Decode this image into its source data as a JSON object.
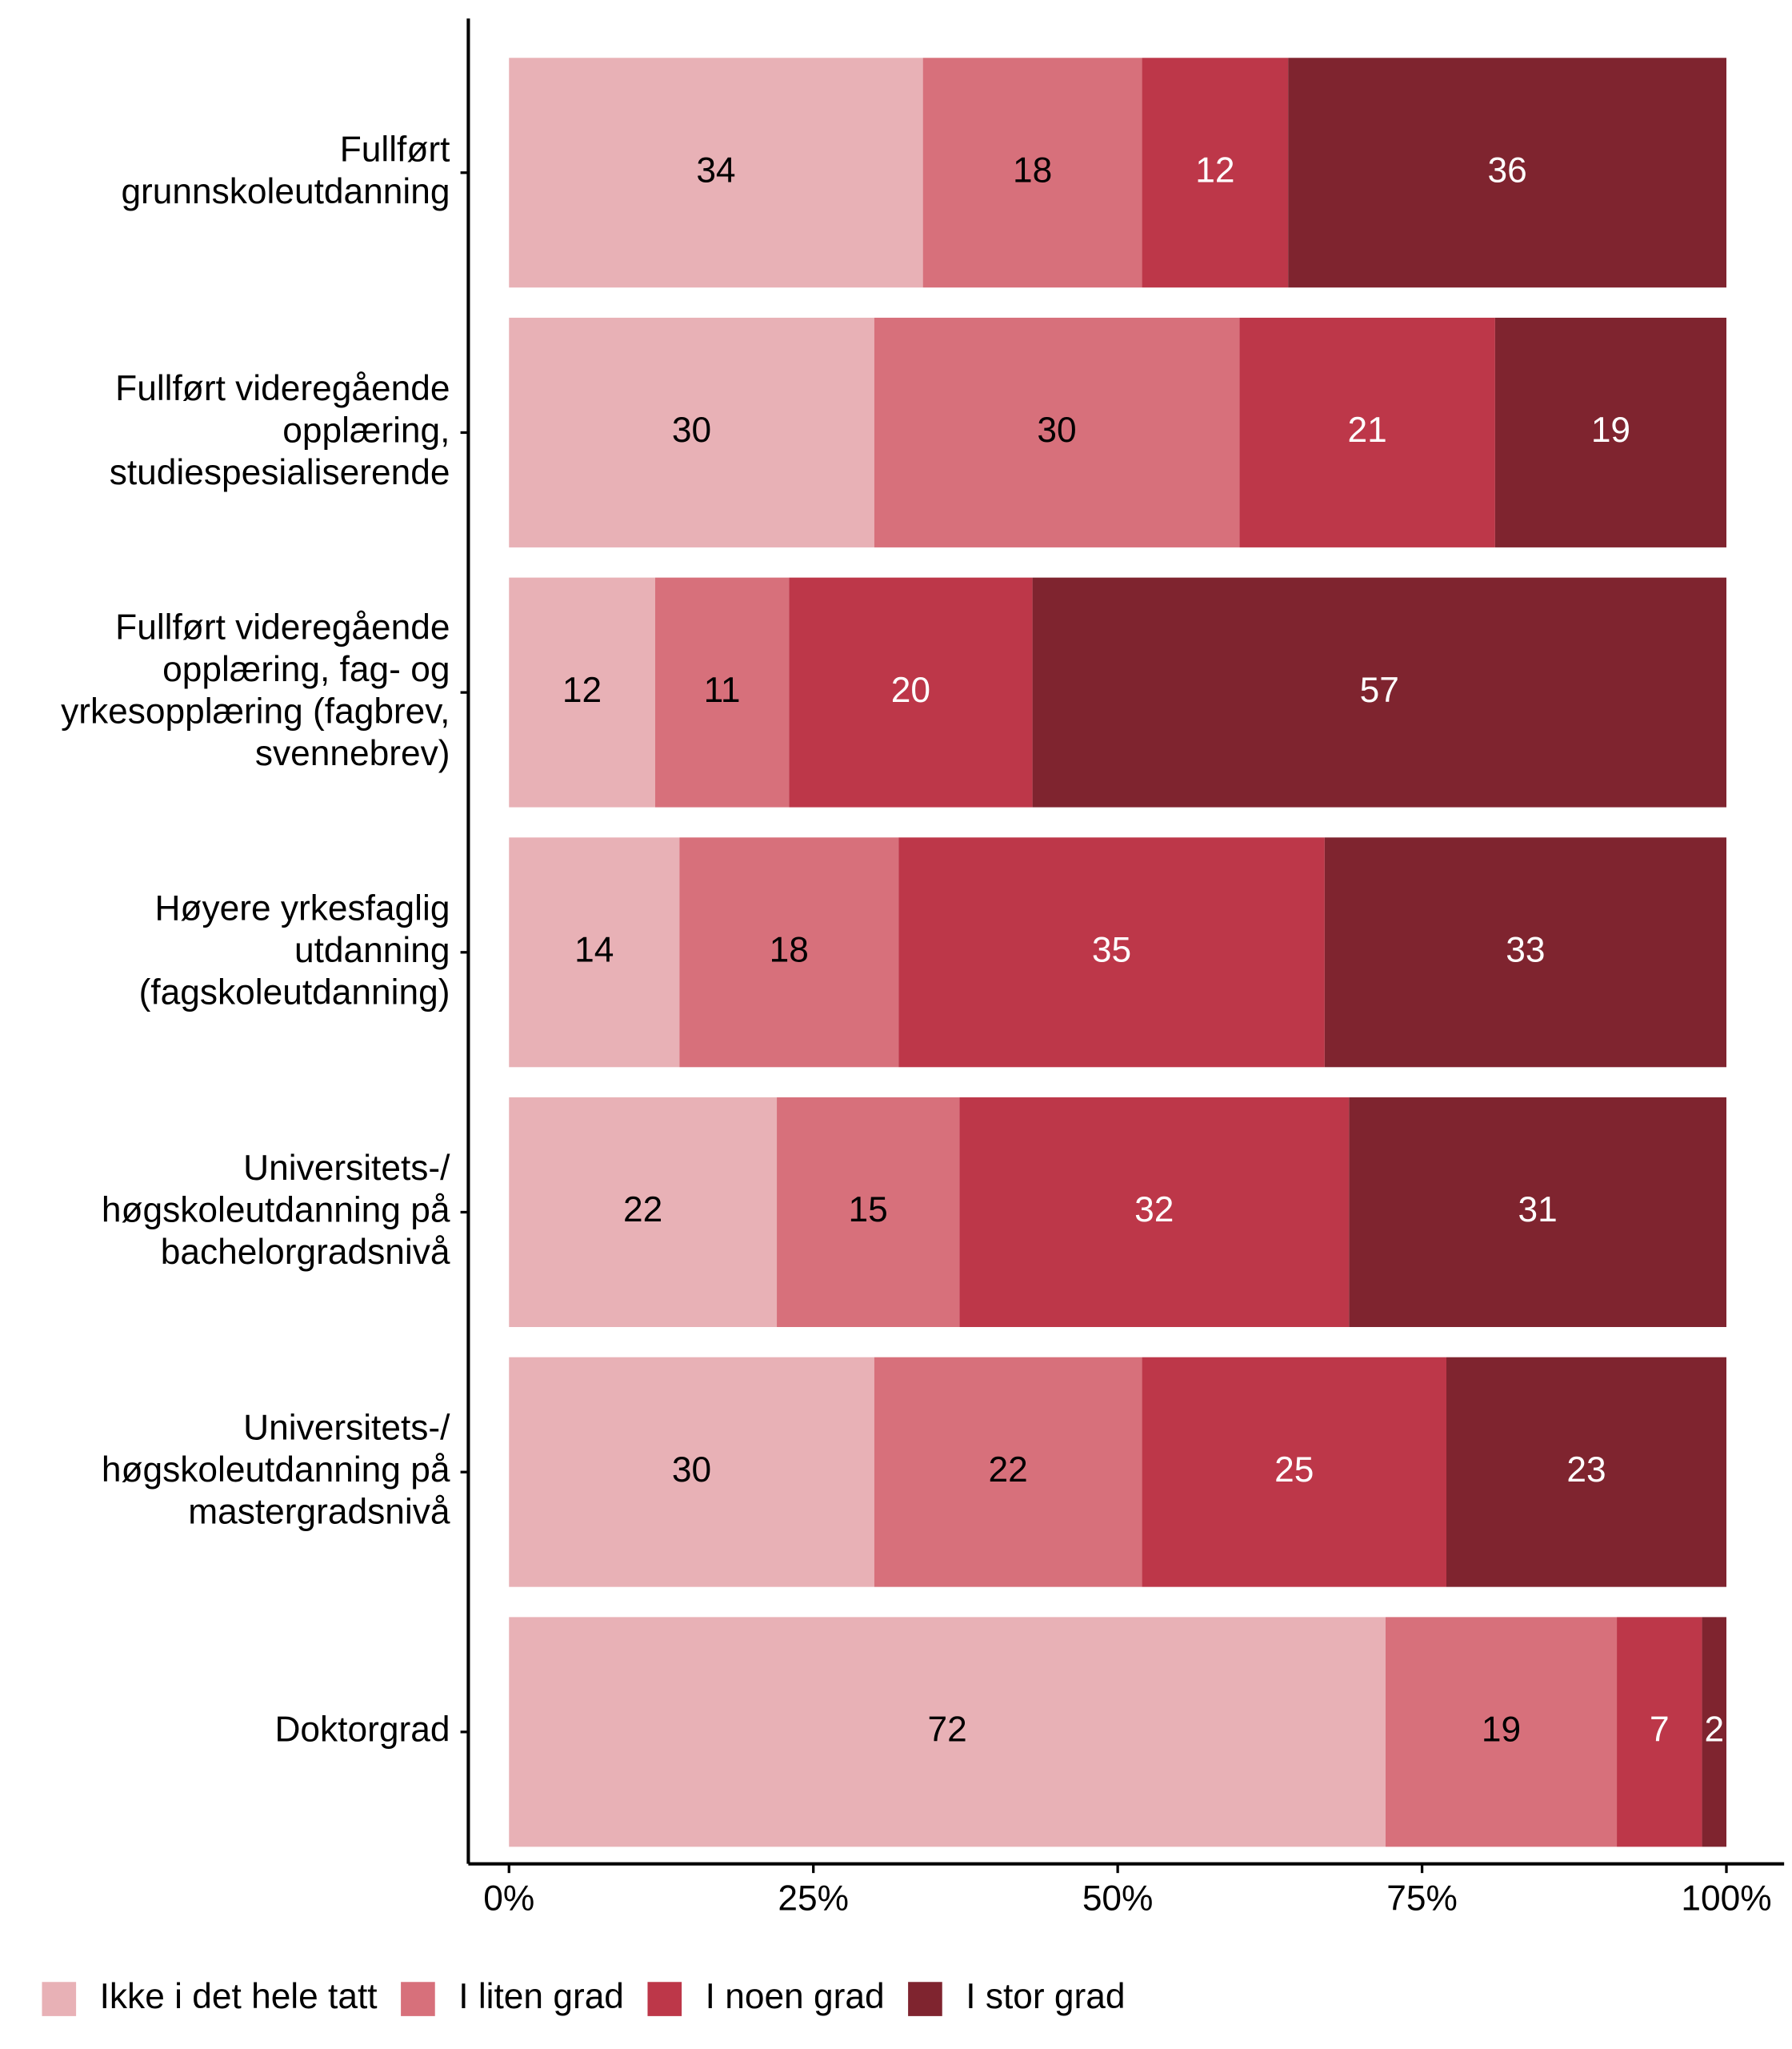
{
  "chart_data": {
    "type": "stacked-barh",
    "categories": [
      "Fullført\ngrunnskoleutdanning",
      "Fullført videregående\nopplæring,\nstudiespesialiserende",
      "Fullført videregående\nopplæring, fag- og\nyrkesopplæring (fagbrev,\nsvennebrev)",
      "Høyere yrkesfaglig\nutdanning\n(fagskoleutdanning)",
      "Universitets-/\nhøgskoleutdanning på\nbachelorgradsnivå",
      "Universitets-/\nhøgskoleutdanning på\nmastergradsnivå",
      "Doktorgrad"
    ],
    "series": [
      {
        "name": "Ikke i det hele tatt",
        "color": "#e8b1b6",
        "label_color": "#000000",
        "values": [
          34,
          30,
          12,
          14,
          22,
          30,
          72
        ]
      },
      {
        "name": "I liten grad",
        "color": "#d7707b",
        "label_color": "#000000",
        "values": [
          18,
          30,
          11,
          18,
          15,
          22,
          19
        ]
      },
      {
        "name": "I noen grad",
        "color": "#bd3749",
        "label_color": "#ffffff",
        "values": [
          12,
          21,
          20,
          35,
          32,
          25,
          7
        ]
      },
      {
        "name": "I stor grad",
        "color": "#7f242f",
        "label_color": "#ffffff",
        "values": [
          36,
          19,
          57,
          33,
          31,
          23,
          2
        ]
      }
    ],
    "xlim": [
      0,
      100
    ],
    "xticks": [
      {
        "value": 0,
        "label": "0%"
      },
      {
        "value": 25,
        "label": "25%"
      },
      {
        "value": 50,
        "label": "50%"
      },
      {
        "value": 75,
        "label": "75%"
      },
      {
        "value": 100,
        "label": "100%"
      }
    ],
    "legend": "bottom"
  }
}
